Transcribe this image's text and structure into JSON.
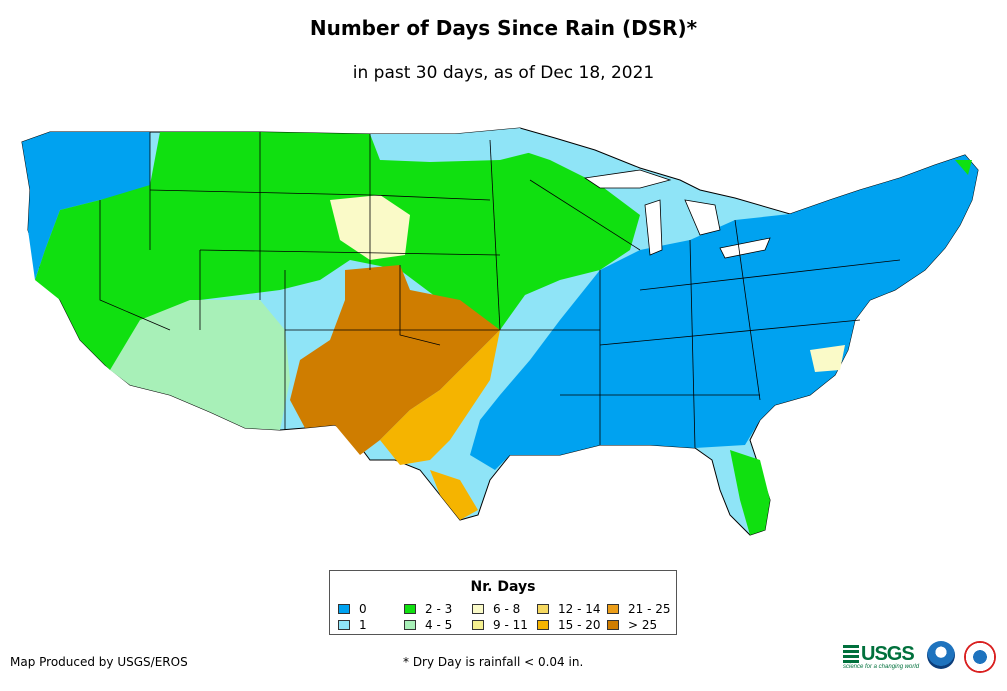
{
  "title": "Number of Days Since Rain (DSR)*",
  "subtitle": "in past 30 days, as of Dec 18, 2021",
  "legend": {
    "title": "Nr. Days",
    "items": [
      {
        "label": "0",
        "color": "#00a2f0"
      },
      {
        "label": "1",
        "color": "#8fe4f7"
      },
      {
        "label": "2 - 3",
        "color": "#10e010"
      },
      {
        "label": "4 - 5",
        "color": "#a8f0b8"
      },
      {
        "label": "6 - 8",
        "color": "#fafac8"
      },
      {
        "label": "9 - 11",
        "color": "#f5f090"
      },
      {
        "label": "12 - 14",
        "color": "#f5d860"
      },
      {
        "label": "15 - 20",
        "color": "#f5b400"
      },
      {
        "label": "21 - 25",
        "color": "#eb9d18"
      },
      {
        "label": "> 25",
        "color": "#cf7d00"
      }
    ]
  },
  "credit": "Map Produced by USGS/EROS",
  "footnote": "* Dry Day is rainfall < 0.04 in.",
  "logos": {
    "usgs": "USGS",
    "usgs_tagline": "science for a changing world",
    "noaa": "noaa-logo",
    "nws": "national-weather-service-logo"
  }
}
